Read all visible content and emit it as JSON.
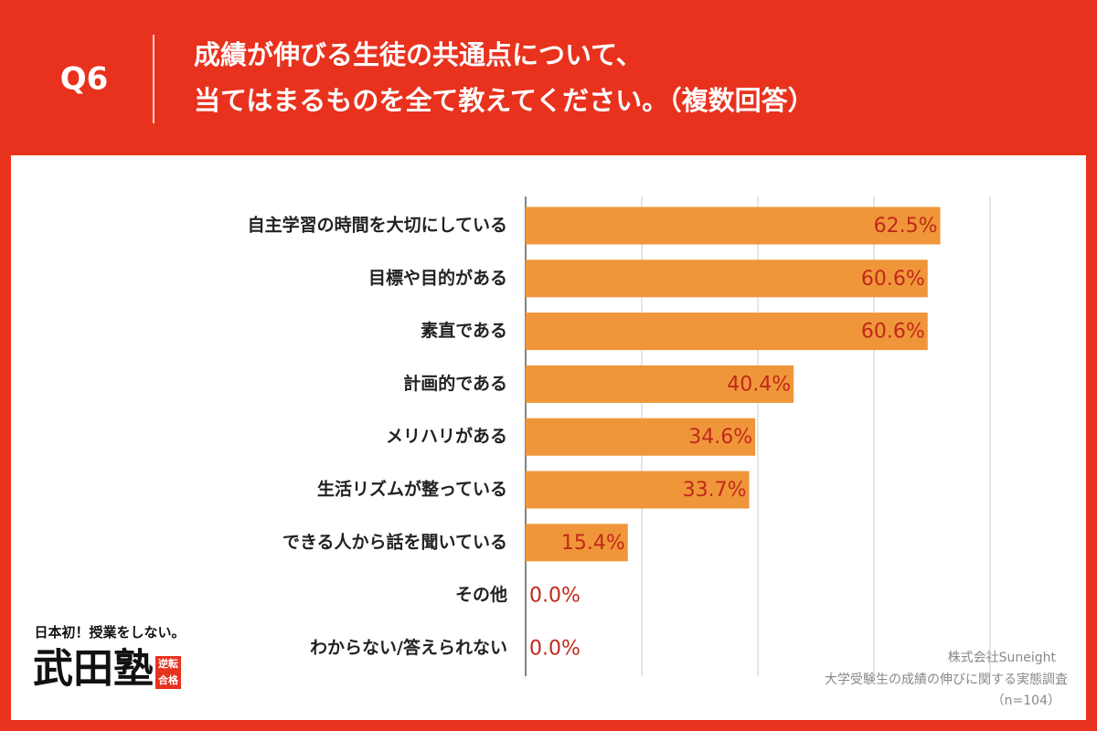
{
  "chart_data": {
    "type": "barh",
    "question": "Q6",
    "title": [
      "成績が伸びる生徒の共通点について、",
      "当てはまるものを全て教えてください。（複数回答）"
    ],
    "categories": [
      "自主学習の時間を大切にしている",
      "目標や目的がある",
      "素直である",
      "計画的である",
      "メリハリがある",
      "生活リズムが整っている",
      "できる人から話を聞いている",
      "その他",
      "わからない/答えられない"
    ],
    "values": [
      62.5,
      60.6,
      60.6,
      40.4,
      34.6,
      33.7,
      15.4,
      0.0,
      0.0
    ],
    "value_labels": [
      "62.5%",
      "60.6%",
      "60.6%",
      "40.4%",
      "34.6%",
      "33.7%",
      "15.4%",
      "0.0%",
      "0.0%"
    ],
    "color": "#f0963a",
    "label_color": "#c0291b",
    "xlim": [
      0,
      70
    ],
    "xticks": [
      0,
      17.5,
      35,
      52.5,
      70
    ],
    "tick_labels": false,
    "grid": true,
    "source": [
      "株式会社Suneight",
      "大学受験生の成績の伸びに関する実態調査",
      "（n=104）"
    ]
  },
  "branding": {
    "tagline": "日本初！授業をしない。",
    "name": "武田塾",
    "badge": [
      "逆転",
      "合格"
    ]
  }
}
